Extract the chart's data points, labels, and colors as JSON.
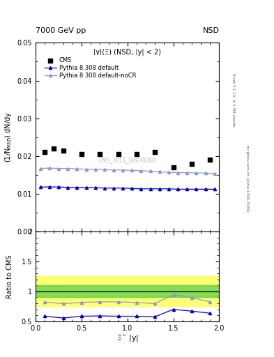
{
  "title_top": "7000 GeV pp",
  "title_top_right": "NSD",
  "panel_title": "|y|(Ξ) (NSD, |y| < 2)",
  "right_label_top": "Rivet 3.1.10, ≥ 3.5M events",
  "right_label_bottom": "mcplots.cern.ch [arXiv:1306.3436]",
  "watermark": "CMS_2011_S8978280",
  "cms_x": [
    0.1,
    0.2,
    0.3,
    0.5,
    0.7,
    0.9,
    1.1,
    1.3,
    1.5,
    1.7,
    1.9
  ],
  "cms_y": [
    0.021,
    0.022,
    0.0215,
    0.0205,
    0.0205,
    0.0205,
    0.0205,
    0.021,
    0.017,
    0.018,
    0.019
  ],
  "py_default_x": [
    0.05,
    0.15,
    0.25,
    0.35,
    0.45,
    0.55,
    0.65,
    0.75,
    0.85,
    0.95,
    1.05,
    1.15,
    1.25,
    1.35,
    1.45,
    1.55,
    1.65,
    1.75,
    1.85,
    1.95
  ],
  "py_default_y": [
    0.0118,
    0.0118,
    0.0118,
    0.0117,
    0.0117,
    0.0116,
    0.0116,
    0.0115,
    0.0115,
    0.0115,
    0.0114,
    0.0113,
    0.0113,
    0.0113,
    0.0113,
    0.0112,
    0.0112,
    0.0112,
    0.0112,
    0.0112
  ],
  "py_nocr_x": [
    0.05,
    0.15,
    0.25,
    0.35,
    0.45,
    0.55,
    0.65,
    0.75,
    0.85,
    0.95,
    1.05,
    1.15,
    1.25,
    1.35,
    1.45,
    1.55,
    1.65,
    1.75,
    1.85,
    1.95
  ],
  "py_nocr_y": [
    0.0167,
    0.0168,
    0.0167,
    0.0167,
    0.0166,
    0.0165,
    0.0165,
    0.0164,
    0.0163,
    0.0163,
    0.0162,
    0.0161,
    0.016,
    0.0158,
    0.0157,
    0.0156,
    0.0156,
    0.0155,
    0.0155,
    0.0153
  ],
  "ratio_default_x": [
    0.1,
    0.3,
    0.5,
    0.7,
    0.9,
    1.1,
    1.3,
    1.5,
    1.7,
    1.9
  ],
  "ratio_default_y": [
    0.585,
    0.555,
    0.585,
    0.59,
    0.585,
    0.585,
    0.575,
    0.7,
    0.67,
    0.635
  ],
  "ratio_nocr_x": [
    0.1,
    0.3,
    0.5,
    0.7,
    0.9,
    1.1,
    1.3,
    1.5,
    1.7,
    1.9
  ],
  "ratio_nocr_y": [
    0.82,
    0.795,
    0.815,
    0.825,
    0.825,
    0.815,
    0.795,
    0.945,
    0.895,
    0.825
  ],
  "color_cms": "#000000",
  "color_default": "#0000cc",
  "color_nocr": "#8899cc",
  "band_yellow_low": 0.75,
  "band_yellow_high": 1.25,
  "band_green_low": 0.9,
  "band_green_high": 1.1,
  "band_yellow_color": "#ffff44",
  "band_green_color": "#44cc44",
  "ylim_main": [
    0.0,
    0.05
  ],
  "ylim_ratio": [
    0.5,
    2.0
  ],
  "xlim": [
    0.0,
    2.0
  ],
  "ylabel_main": "(1/N$_{NSD}$) dN/dy",
  "ylabel_ratio": "Ratio to CMS",
  "xlabel": "Ξ$^{-}$ |y|",
  "legend_cms": "CMS",
  "legend_default": "Pythia 8.308 default",
  "legend_nocr": "Pythia 8.308 default-noCR",
  "yticks_main": [
    0.0,
    0.01,
    0.02,
    0.03,
    0.04,
    0.05
  ],
  "yticks_ratio": [
    0.5,
    1.0,
    1.5,
    2.0
  ],
  "xticks": [
    0.0,
    0.5,
    1.0,
    1.5,
    2.0
  ]
}
